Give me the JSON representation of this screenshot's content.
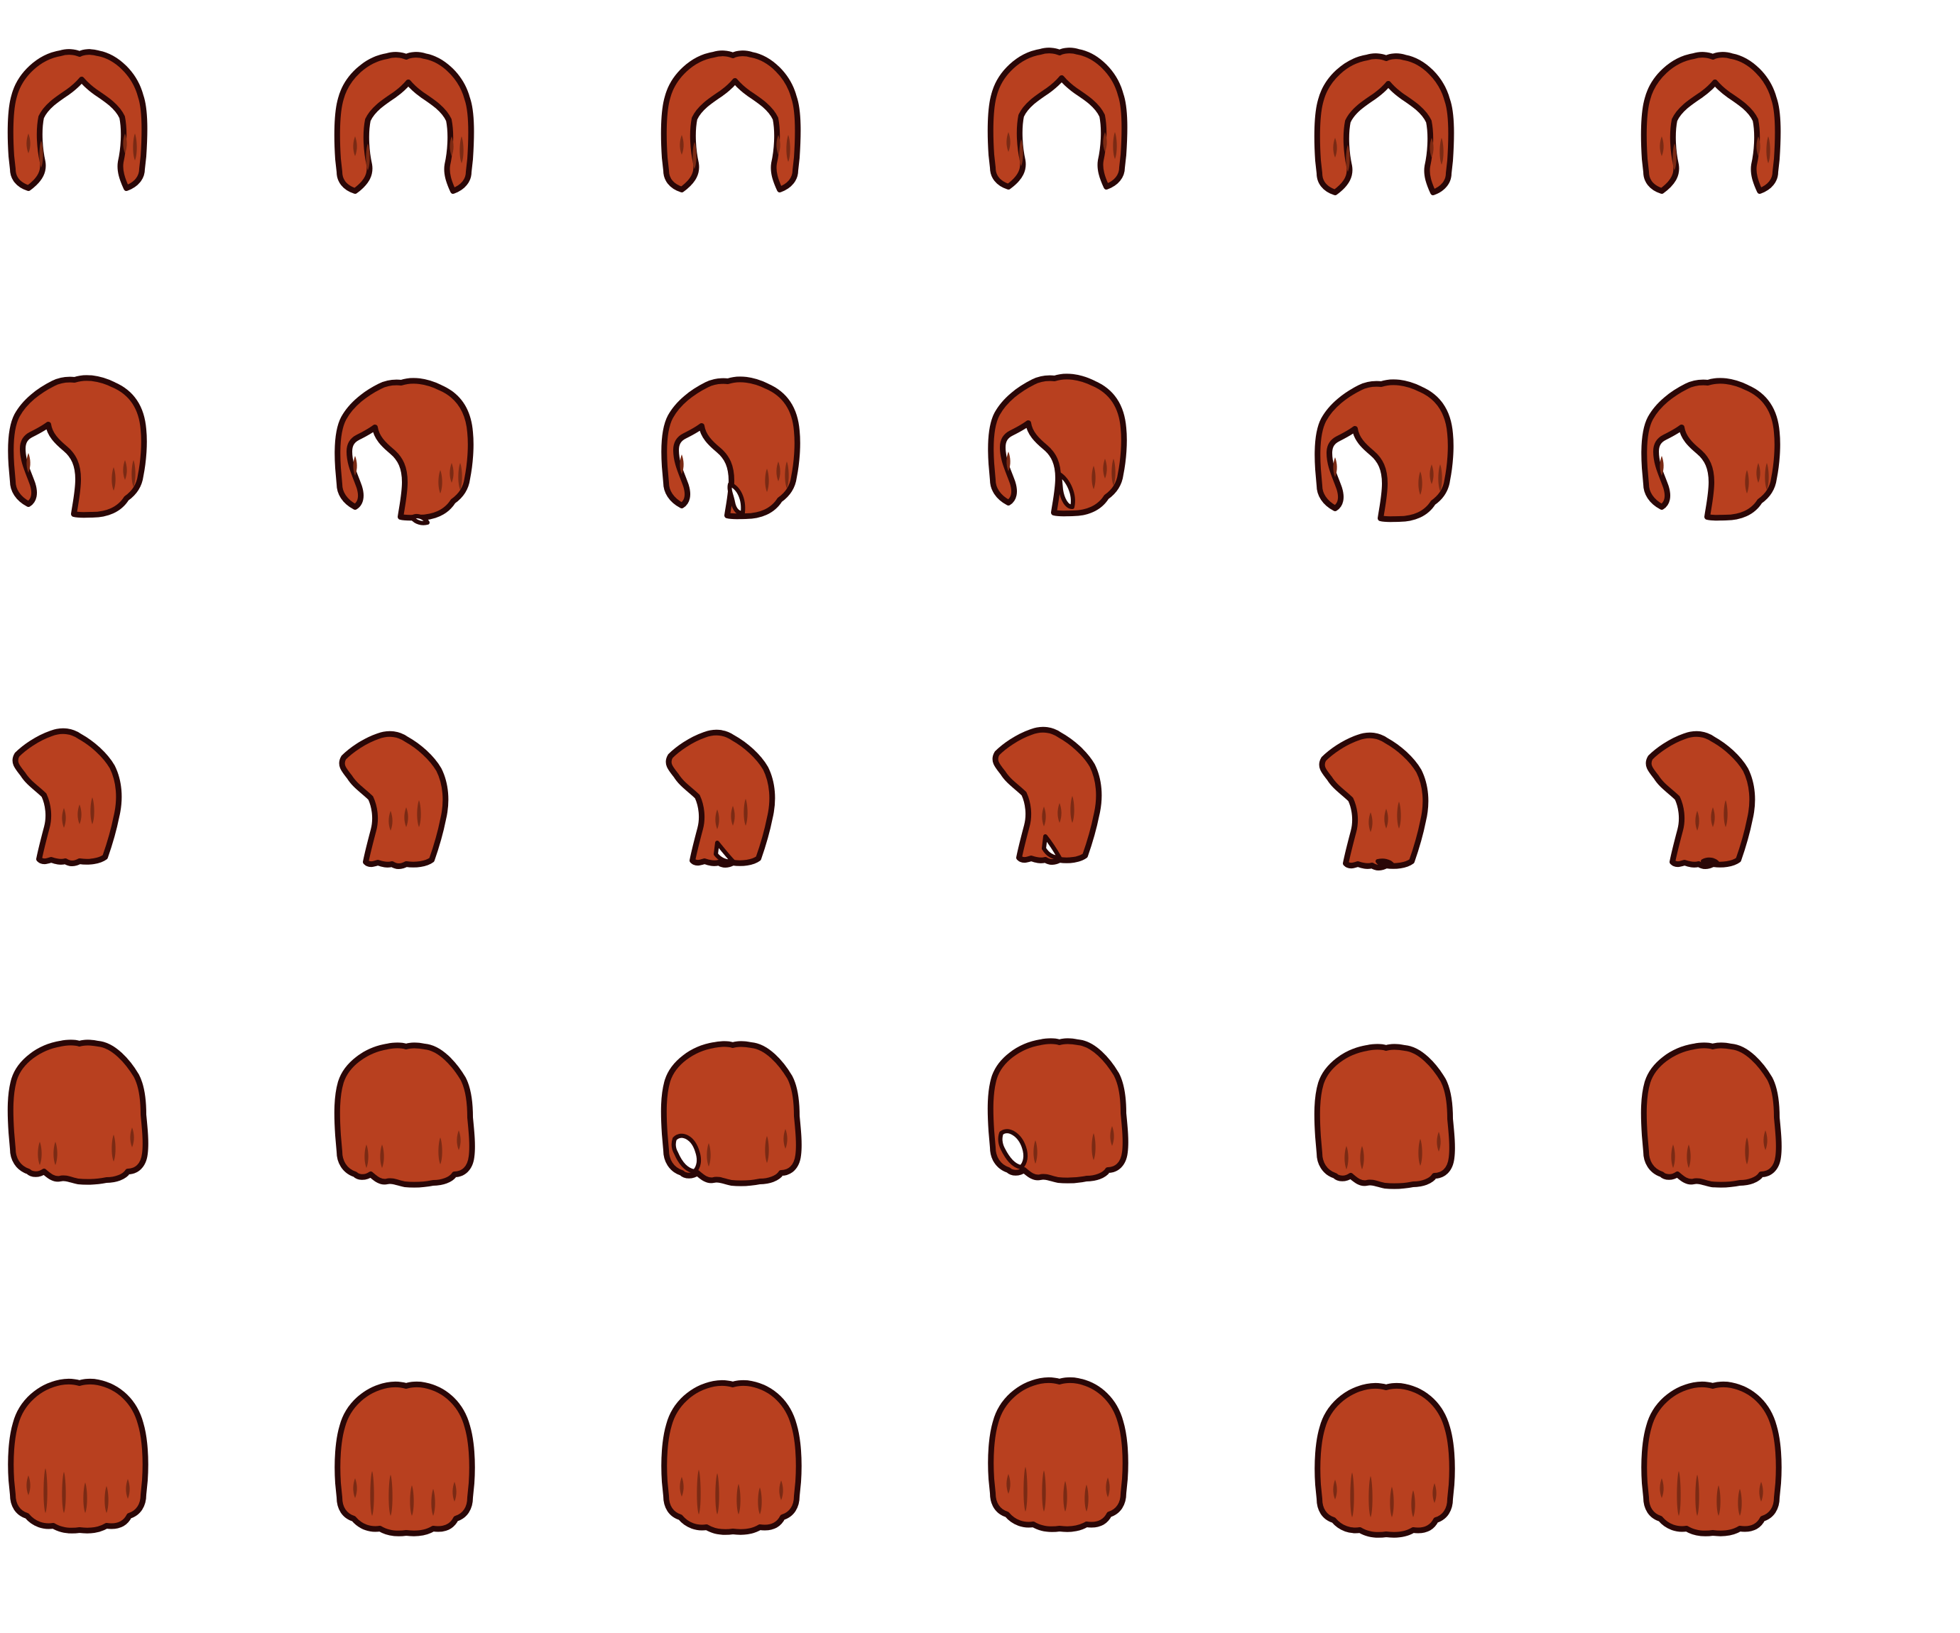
{
  "sheet": {
    "name": "hair-sprite-sheet",
    "background": "#ffffff",
    "colors": {
      "hair": "#b8401f",
      "shade": "#7a2a14",
      "outline": "#2a0707",
      "hole": "#ffffff"
    },
    "rows": [
      {
        "view": "front",
        "frames": 6
      },
      {
        "view": "three-quarter",
        "frames": 6
      },
      {
        "view": "side",
        "frames": 6
      },
      {
        "view": "back-quarter",
        "frames": 6
      },
      {
        "view": "back",
        "frames": 6
      }
    ]
  }
}
